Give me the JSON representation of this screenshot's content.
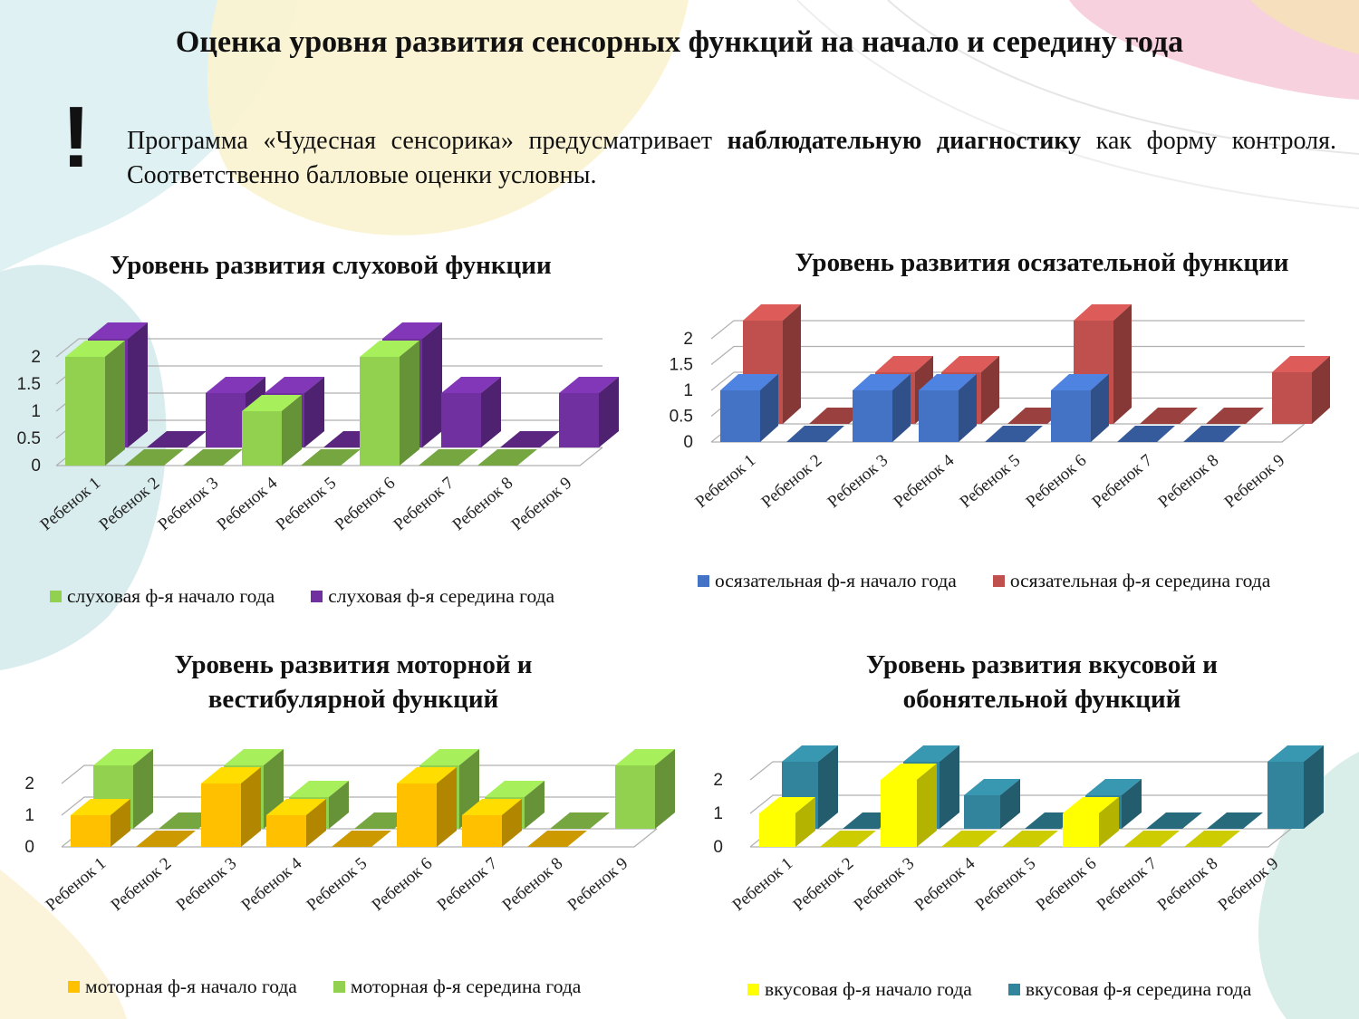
{
  "page": {
    "title": "Оценка уровня развития сенсорных функций на начало и середину года",
    "exclamation": "!",
    "intro_part1": "Программа «Чудесная сенсорика» предусматривает ",
    "intro_bold": "наблюдательную диагностику",
    "intro_part2": " как форму контроля. Соответственно балловые оценки условны."
  },
  "chart_data": [
    {
      "type": "bar",
      "title": "Уровень развития слуховой функции",
      "categories": [
        "Ребенок 1",
        "Ребенок 2",
        "Ребенок 3",
        "Ребенок 4",
        "Ребенок 5",
        "Ребенок 6",
        "Ребенок 7",
        "Ребенок 8",
        "Ребенок 9"
      ],
      "series": [
        {
          "name": "слуховая ф-я начало года",
          "values": [
            2,
            0,
            0,
            1,
            0,
            2,
            0,
            0,
            null
          ],
          "color": "#92D050"
        },
        {
          "name": "слуховая ф-я середина года",
          "values": [
            2,
            0,
            1,
            1,
            0,
            2,
            1,
            0,
            1
          ],
          "color": "#7030A0"
        }
      ],
      "yticks": [
        "0",
        "0.5",
        "1",
        "1.5",
        "2"
      ],
      "ylim": [
        0,
        2
      ],
      "grid": true,
      "legend": "bottom"
    },
    {
      "type": "bar",
      "title": "Уровень развития осязательной функции",
      "categories": [
        "Ребенок 1",
        "Ребенок 2",
        "Ребенок 3",
        "Ребенок 4",
        "Ребенок 5",
        "Ребенок 6",
        "Ребенок 7",
        "Ребенок 8",
        "Ребенок 9"
      ],
      "series": [
        {
          "name": "осязательная ф-я начало года",
          "values": [
            1,
            0,
            1,
            1,
            0,
            1,
            0,
            0,
            null
          ],
          "color": "#4472C4"
        },
        {
          "name": "осязательная ф-я середина года",
          "values": [
            2,
            0,
            1,
            1,
            0,
            2,
            0,
            0,
            1
          ],
          "color": "#C0504D"
        }
      ],
      "yticks": [
        "0",
        "0.5",
        "1",
        "1.5",
        "2"
      ],
      "ylim": [
        0,
        2
      ],
      "grid": true,
      "legend": "bottom"
    },
    {
      "type": "bar",
      "title": "Уровень развития моторной и вестибулярной функций",
      "categories": [
        "Ребенок 1",
        "Ребенок 2",
        "Ребенок 3",
        "Ребенок 4",
        "Ребенок 5",
        "Ребенок 6",
        "Ребенок 7",
        "Ребенок 8",
        "Ребенок 9"
      ],
      "series": [
        {
          "name": "моторная ф-я начало года",
          "values": [
            1,
            0,
            2,
            1,
            0,
            2,
            1,
            0,
            null
          ],
          "color": "#FFC000"
        },
        {
          "name": "моторная ф-я середина года",
          "values": [
            2,
            0,
            2,
            1,
            0,
            2,
            1,
            0,
            2
          ],
          "color": "#92D050"
        }
      ],
      "yticks": [
        "0",
        "1",
        "2"
      ],
      "ylim": [
        0,
        2
      ],
      "grid": true,
      "legend": "bottom"
    },
    {
      "type": "bar",
      "title": "Уровень развития вкусовой и обонятельной функций",
      "categories": [
        "Ребенок 1",
        "Ребенок 2",
        "Ребенок 3",
        "Ребенок 4",
        "Ребенок 5",
        "Ребенок 6",
        "Ребенок 7",
        "Ребенок 8",
        "Ребенок 9"
      ],
      "series": [
        {
          "name": "вкусовая ф-я начало года",
          "values": [
            1,
            0,
            2,
            0,
            0,
            1,
            0,
            0,
            null
          ],
          "color": "#FFFF00"
        },
        {
          "name": "вкусовая ф-я середина года",
          "values": [
            2,
            0,
            2,
            1,
            0,
            1,
            0,
            0,
            2
          ],
          "color": "#31849B"
        }
      ],
      "yticks": [
        "0",
        "1",
        "2"
      ],
      "ylim": [
        0,
        2
      ],
      "grid": true,
      "legend": "bottom"
    }
  ]
}
